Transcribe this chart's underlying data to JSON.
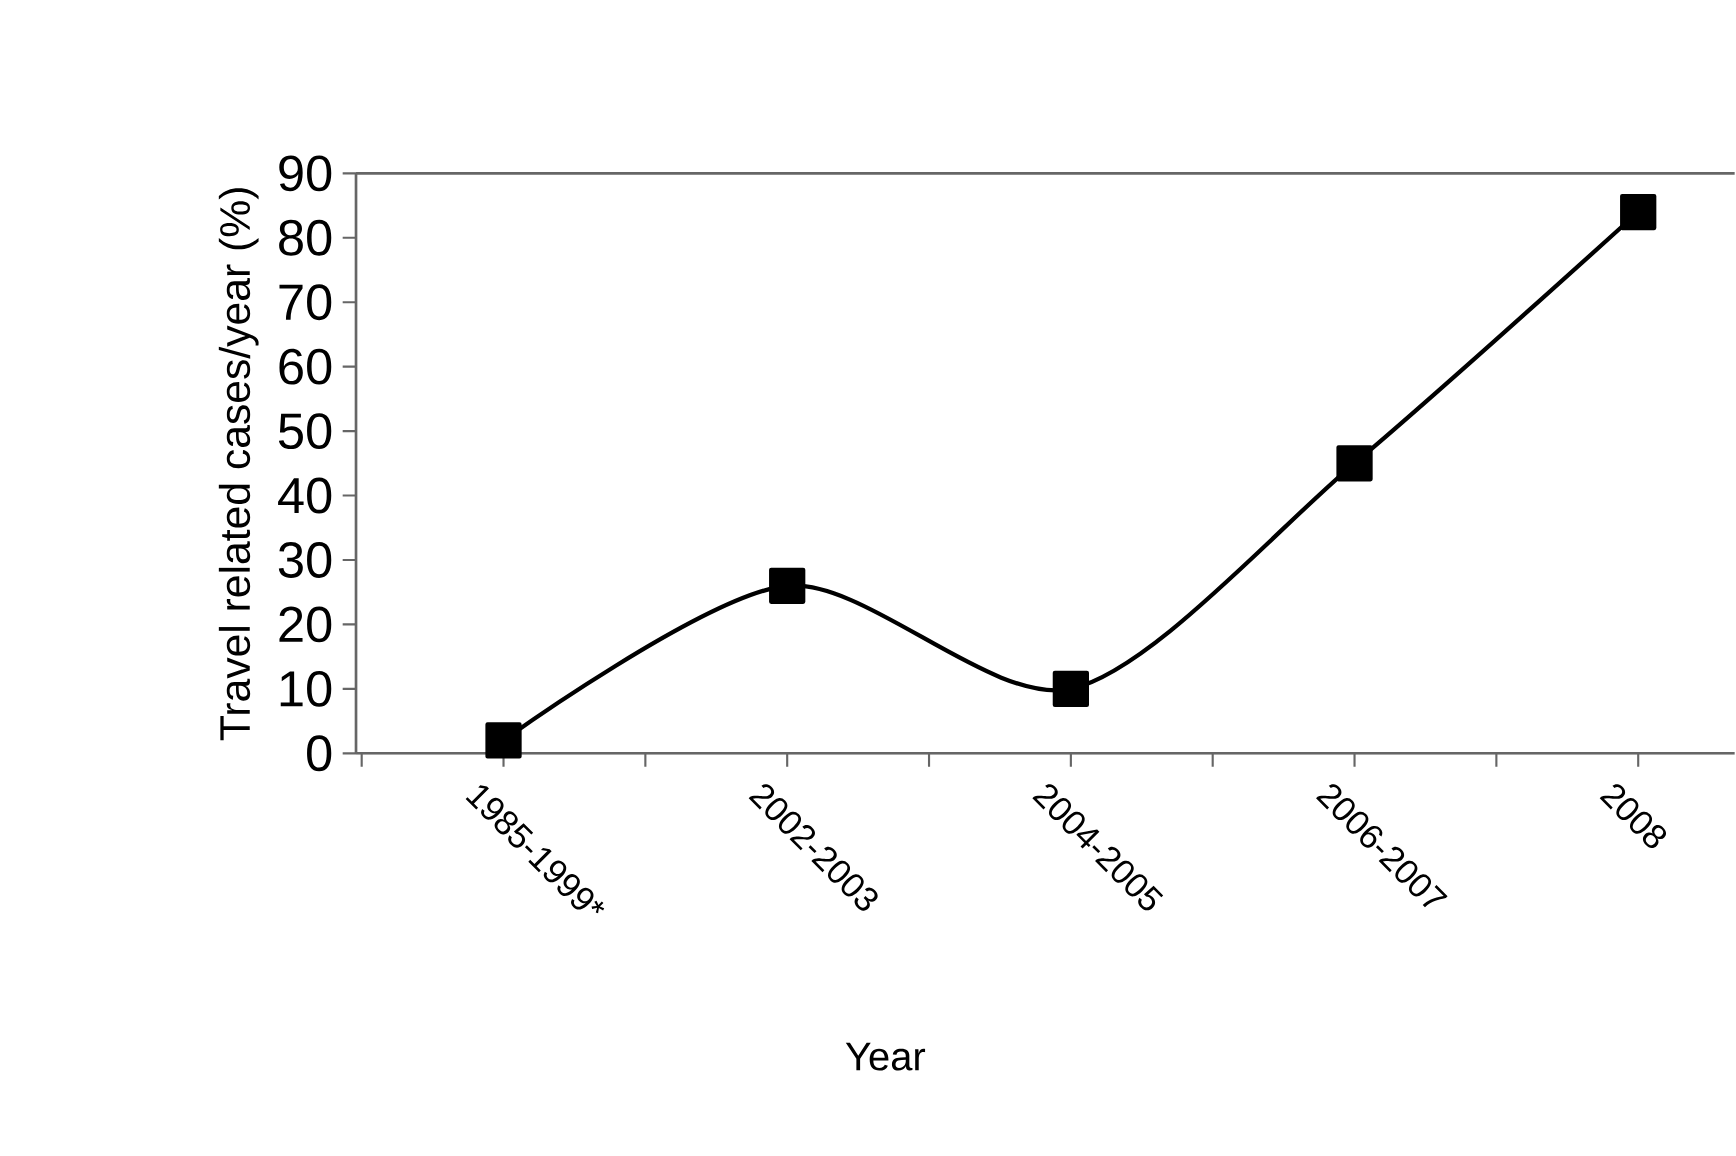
{
  "chart_data": {
    "type": "line",
    "xlabel": "Year",
    "ylabel": "Travel related cases/year (%)",
    "categories": [
      "1985-1999*",
      "2002-2003",
      "2004-2005",
      "2006-2007",
      "2008"
    ],
    "values": [
      2,
      26,
      10,
      45,
      84
    ],
    "color": "#000000",
    "marker": "square",
    "line_style": "solid",
    "ylim": [
      0,
      90
    ],
    "yticks": [
      0,
      10,
      20,
      30,
      40,
      50,
      60,
      70,
      80,
      90
    ]
  }
}
